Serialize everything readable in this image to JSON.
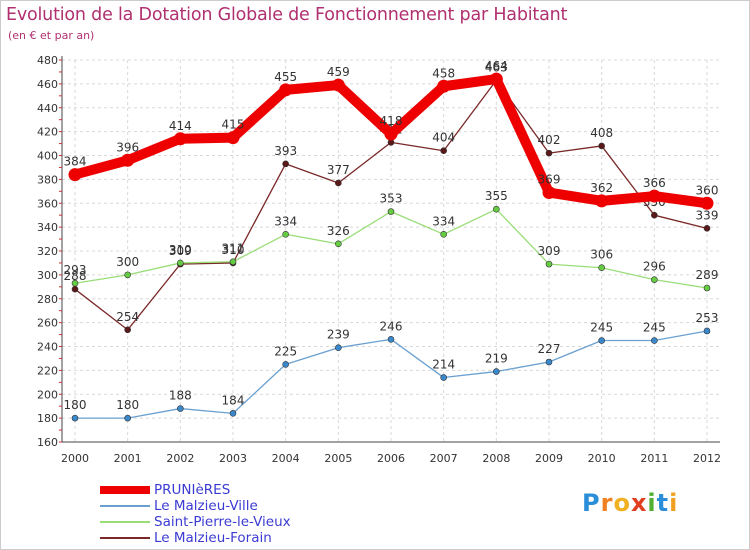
{
  "header": {
    "title": "Evolution de la Dotation Globale de Fonctionnement par Habitant",
    "subtitle": "(en € et par an)"
  },
  "brand": {
    "letters": [
      "P",
      "r",
      "o",
      "x",
      "i",
      "t",
      "i"
    ],
    "colors": [
      "#2a8fd8",
      "#f08020",
      "#f0b020",
      "#e04020",
      "#50b030",
      "#2a8fd8",
      "#f0a020"
    ]
  },
  "chart_data": {
    "type": "line",
    "title": "Evolution de la Dotation Globale de Fonctionnement par Habitant",
    "subtitle": "(en € et par an)",
    "xlabel": "",
    "ylabel": "",
    "x": [
      "2000",
      "2001",
      "2002",
      "2003",
      "2004",
      "2005",
      "2006",
      "2007",
      "2008",
      "2009",
      "2010",
      "2011",
      "2012"
    ],
    "ylim": [
      160,
      480
    ],
    "yticks": [
      160,
      180,
      200,
      220,
      240,
      260,
      280,
      300,
      320,
      340,
      360,
      380,
      400,
      420,
      440,
      460,
      480
    ],
    "grid": true,
    "legend_position": "bottom-left",
    "series": [
      {
        "name": "Le Malzieu-Forain",
        "color": "#7a2828",
        "point_color": "#5a1818",
        "values": [
          288,
          254,
          309,
          310,
          393,
          377,
          411,
          404,
          463,
          402,
          408,
          350,
          339
        ]
      },
      {
        "name": "Saint-Pierre-le-Vieux",
        "color": "#99dd77",
        "point_color": "#66cc44",
        "values": [
          293,
          300,
          310,
          311,
          334,
          326,
          353,
          334,
          355,
          309,
          306,
          296,
          289
        ]
      },
      {
        "name": "Le Malzieu-Ville",
        "color": "#6aa0d0",
        "point_color": "#3a88cc",
        "values": [
          180,
          180,
          188,
          184,
          225,
          239,
          246,
          214,
          219,
          227,
          245,
          245,
          253
        ]
      },
      {
        "name": "PRUNIèRES",
        "color": "#ee0000",
        "point_color": "#ee0000",
        "values": [
          384,
          396,
          414,
          415,
          455,
          459,
          418,
          458,
          464,
          369,
          362,
          366,
          360
        ]
      }
    ]
  }
}
